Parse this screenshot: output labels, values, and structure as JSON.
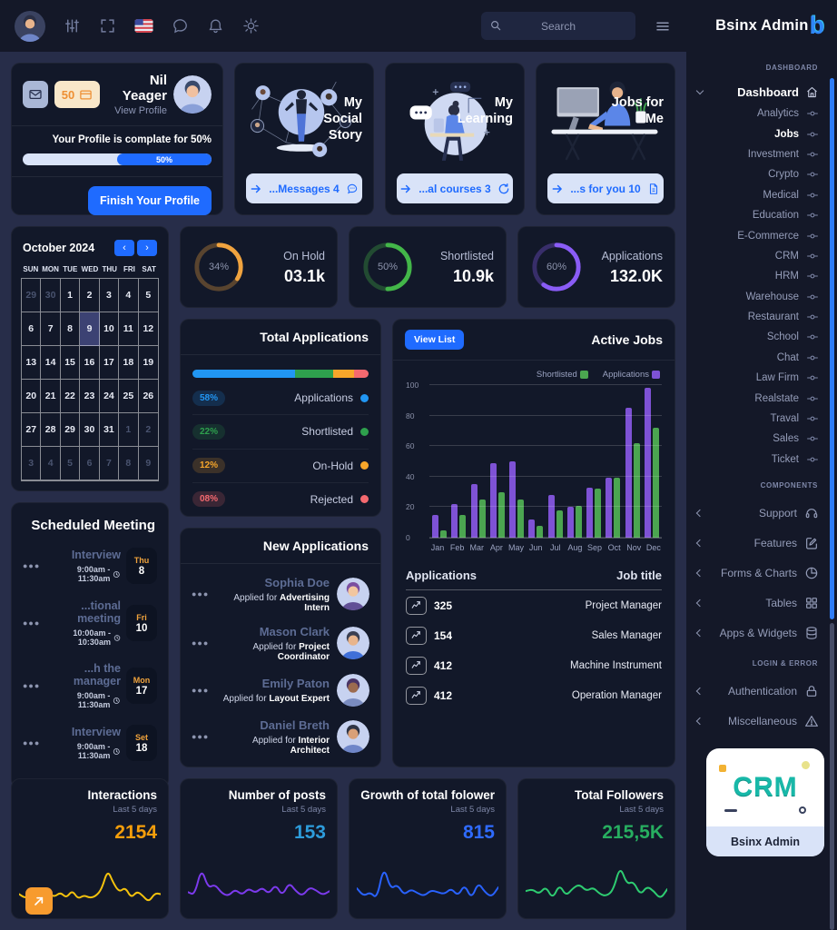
{
  "brand": {
    "name": "Bsinx Admin",
    "logo_letter": "b"
  },
  "topbar": {
    "search_placeholder": "Search"
  },
  "profile_card": {
    "name": "Nil Yeager",
    "view_profile": "View Profile",
    "coin_count": "50",
    "progress_text": "Your Profile is complate for 50%",
    "progress_label": "50%",
    "progress_pct": 50,
    "button_label": "Finish Your Profile"
  },
  "promo_cards": [
    {
      "title": "My Social Story",
      "button": "...Messages 4",
      "trail_icon": "chat-dots"
    },
    {
      "title": "My Learning",
      "button": "...al courses 3",
      "trail_icon": "refresh"
    },
    {
      "title": "Jobs for Me",
      "button": "...s for you 10",
      "trail_icon": "doc"
    }
  ],
  "ring_stats": [
    {
      "percent": "34%",
      "pct": 34,
      "label": "On Hold",
      "value": "03.1k",
      "color": "#f0a33f"
    },
    {
      "percent": "50%",
      "pct": 50,
      "label": "Shortlisted",
      "value": "10.9k",
      "color": "#43b649"
    },
    {
      "percent": "60%",
      "pct": 60,
      "label": "Applications",
      "value": "132.0K",
      "color": "#8a5cf6"
    }
  ],
  "calendar": {
    "month": "October 2024",
    "prev": "‹",
    "next": "›",
    "day_headers": [
      "SUN",
      "MON",
      "TUE",
      "WED",
      "THU",
      "FRI",
      "SAT"
    ],
    "weeks": [
      [
        {
          "d": "29",
          "m": 1
        },
        {
          "d": "30",
          "m": 1
        },
        {
          "d": "1"
        },
        {
          "d": "2"
        },
        {
          "d": "3"
        },
        {
          "d": "4"
        },
        {
          "d": "5"
        }
      ],
      [
        {
          "d": "6"
        },
        {
          "d": "7"
        },
        {
          "d": "8"
        },
        {
          "d": "9",
          "s": 1
        },
        {
          "d": "10"
        },
        {
          "d": "11"
        },
        {
          "d": "12"
        }
      ],
      [
        {
          "d": "13"
        },
        {
          "d": "14"
        },
        {
          "d": "15"
        },
        {
          "d": "16"
        },
        {
          "d": "17"
        },
        {
          "d": "18"
        },
        {
          "d": "19"
        }
      ],
      [
        {
          "d": "20"
        },
        {
          "d": "21"
        },
        {
          "d": "22"
        },
        {
          "d": "23"
        },
        {
          "d": "24"
        },
        {
          "d": "25"
        },
        {
          "d": "26"
        }
      ],
      [
        {
          "d": "27"
        },
        {
          "d": "28"
        },
        {
          "d": "29"
        },
        {
          "d": "30"
        },
        {
          "d": "31"
        },
        {
          "d": "1",
          "m": 1
        },
        {
          "d": "2",
          "m": 1
        }
      ],
      [
        {
          "d": "3",
          "m": 1
        },
        {
          "d": "4",
          "m": 1
        },
        {
          "d": "5",
          "m": 1
        },
        {
          "d": "6",
          "m": 1
        },
        {
          "d": "7",
          "m": 1
        },
        {
          "d": "8",
          "m": 1
        },
        {
          "d": "9",
          "m": 1
        }
      ]
    ]
  },
  "total_applications": {
    "title": "Total Applications",
    "rows": [
      {
        "pct": "58%",
        "value": 58,
        "label": "Applications",
        "color": "#2196f3"
      },
      {
        "pct": "22%",
        "value": 22,
        "label": "Shortlisted",
        "color": "#2ea04d"
      },
      {
        "pct": "12%",
        "value": 12,
        "label": "On-Hold",
        "color": "#f7a62a"
      },
      {
        "pct": "08%",
        "value": 8,
        "label": "Rejected",
        "color": "#f4696f"
      }
    ]
  },
  "active_jobs": {
    "title": "Active Jobs",
    "view_list": "View List",
    "legend": [
      {
        "label": "Shortlisted",
        "color": "#4ba550"
      },
      {
        "label": "Applications",
        "color": "#7e52d5"
      }
    ]
  },
  "chart_data": {
    "type": "bar",
    "title": "Active Jobs",
    "categories": [
      "Jan",
      "Feb",
      "Mar",
      "Apr",
      "May",
      "Jun",
      "Jul",
      "Aug",
      "Sep",
      "Oct",
      "Nov",
      "Dec"
    ],
    "series": [
      {
        "name": "Applications",
        "color": "#7e52d5",
        "values": [
          15,
          22,
          35,
          49,
          50,
          12,
          28,
          20,
          33,
          39,
          85,
          98
        ]
      },
      {
        "name": "Shortlisted",
        "color": "#4ba550",
        "values": [
          5,
          15,
          25,
          30,
          25,
          8,
          18,
          21,
          32,
          39,
          62,
          72
        ]
      }
    ],
    "ylim": [
      0,
      100
    ],
    "yticks": [
      0,
      20,
      40,
      60,
      80,
      100
    ],
    "grid": true,
    "legend_position": "top-right"
  },
  "applications_table": {
    "col_applications": "Applications",
    "col_job_title": "Job title",
    "rows": [
      {
        "count": "325",
        "title": "Project Manager"
      },
      {
        "count": "154",
        "title": "Sales Manager"
      },
      {
        "count": "412",
        "title": "Machine Instrument"
      },
      {
        "count": "412",
        "title": "Operation Manager"
      }
    ]
  },
  "scheduled_meeting": {
    "title": "Scheduled Meeting",
    "items": [
      {
        "title": "Interview",
        "time": "9:00am - 11:30am",
        "day": "Thu",
        "date": "8"
      },
      {
        "title": "...tional meeting",
        "time": "10:00am - 10:30am",
        "day": "Fri",
        "date": "10"
      },
      {
        "title": "...h the manager",
        "time": "9:00am - 11:30am",
        "day": "Mon",
        "date": "17"
      },
      {
        "title": "Interview",
        "time": "9:00am - 11:30am",
        "day": "Set",
        "date": "18"
      }
    ]
  },
  "new_applications": {
    "title": "New Applications",
    "applied_prefix": "Applied for",
    "items": [
      {
        "name": "Sophia Doe",
        "role": "Advertising Intern",
        "av": {
          "bg": "#c7d2f0",
          "skin": "#f2c6a0",
          "hair": "#7b4fa0",
          "shirt": "#614f95"
        }
      },
      {
        "name": "Mason Clark",
        "role": "Project Coordinator",
        "av": {
          "bg": "#c7d2f0",
          "skin": "#e8b48c",
          "hair": "#3a3f52",
          "shirt": "#3f6fd8"
        }
      },
      {
        "name": "Emily Paton",
        "role": "Layout Expert",
        "av": {
          "bg": "#c7d2f0",
          "skin": "#9c6b4f",
          "hair": "#4a3566",
          "shirt": "#7a8cc0"
        }
      },
      {
        "name": "Daniel Breth",
        "role": "Interior Architect",
        "av": {
          "bg": "#c7d2f0",
          "skin": "#d9a078",
          "hair": "#2e3445",
          "shirt": "#6f86c8"
        }
      }
    ]
  },
  "mini_stats": [
    {
      "title": "Interactions",
      "subtitle": "Last 5 days",
      "value": "2154",
      "value_color": "#f59e0b",
      "line_color": "#f4c20d",
      "spark": [
        38,
        30,
        34,
        26,
        30,
        40,
        32,
        42,
        30,
        46,
        28,
        36,
        30,
        34,
        48,
        88,
        60,
        42,
        52,
        30,
        44,
        34,
        22,
        40,
        38
      ]
    },
    {
      "title": "Number of posts",
      "subtitle": "Last 5 days",
      "value": "153",
      "value_color": "#2d9cdb",
      "line_color": "#7c3aed",
      "spark": [
        42,
        36,
        92,
        50,
        58,
        40,
        34,
        48,
        36,
        50,
        40,
        52,
        38,
        58,
        34,
        62,
        44,
        34,
        52,
        46,
        36,
        44
      ]
    },
    {
      "title": "Growth of total folower",
      "subtitle": "Last 5 days",
      "value": "815",
      "value_color": "#2f6bff",
      "line_color": "#2962ff",
      "spark": [
        50,
        34,
        42,
        28,
        96,
        48,
        58,
        36,
        48,
        40,
        34,
        46,
        42,
        38,
        50,
        34,
        58,
        28,
        62,
        42,
        32,
        52
      ]
    },
    {
      "title": "Total Followers",
      "subtitle": "Last 5 days",
      "value": "215,5K",
      "value_color": "#27ae60",
      "line_color": "#2ecc71",
      "spark": [
        44,
        48,
        38,
        54,
        28,
        58,
        34,
        50,
        58,
        44,
        52,
        38,
        34,
        46,
        96,
        58,
        64,
        36,
        54,
        44,
        28,
        48
      ]
    }
  ],
  "sidebar": {
    "header_dashboard": "DASHBOARD",
    "dashboard_label": "Dashboard",
    "dashboard_items": [
      "Analytics",
      "Jobs",
      "Investment",
      "Crypto",
      "Medical",
      "Education",
      "E-Commerce",
      "CRM",
      "HRM",
      "Warehouse",
      "Restaurant",
      "School",
      "Chat",
      "Law Firm",
      "Realstate",
      "Traval",
      "Sales",
      "Ticket"
    ],
    "active_item": "Jobs",
    "components_header": "COMPONENTS",
    "component_items": [
      {
        "label": "Support",
        "icon": "headset"
      },
      {
        "label": "Features",
        "icon": "edit"
      },
      {
        "label": "Forms & Charts",
        "icon": "pie"
      },
      {
        "label": "Tables",
        "icon": "grid"
      },
      {
        "label": "Apps & Widgets",
        "icon": "stack"
      }
    ],
    "login_header": "LOGIN & ERROR",
    "login_items": [
      {
        "label": "Authentication",
        "icon": "lock"
      },
      {
        "label": "Miscellaneous",
        "icon": "warning"
      }
    ],
    "crm_word": "CRM",
    "crm_caption": "Bsinx Admin"
  }
}
